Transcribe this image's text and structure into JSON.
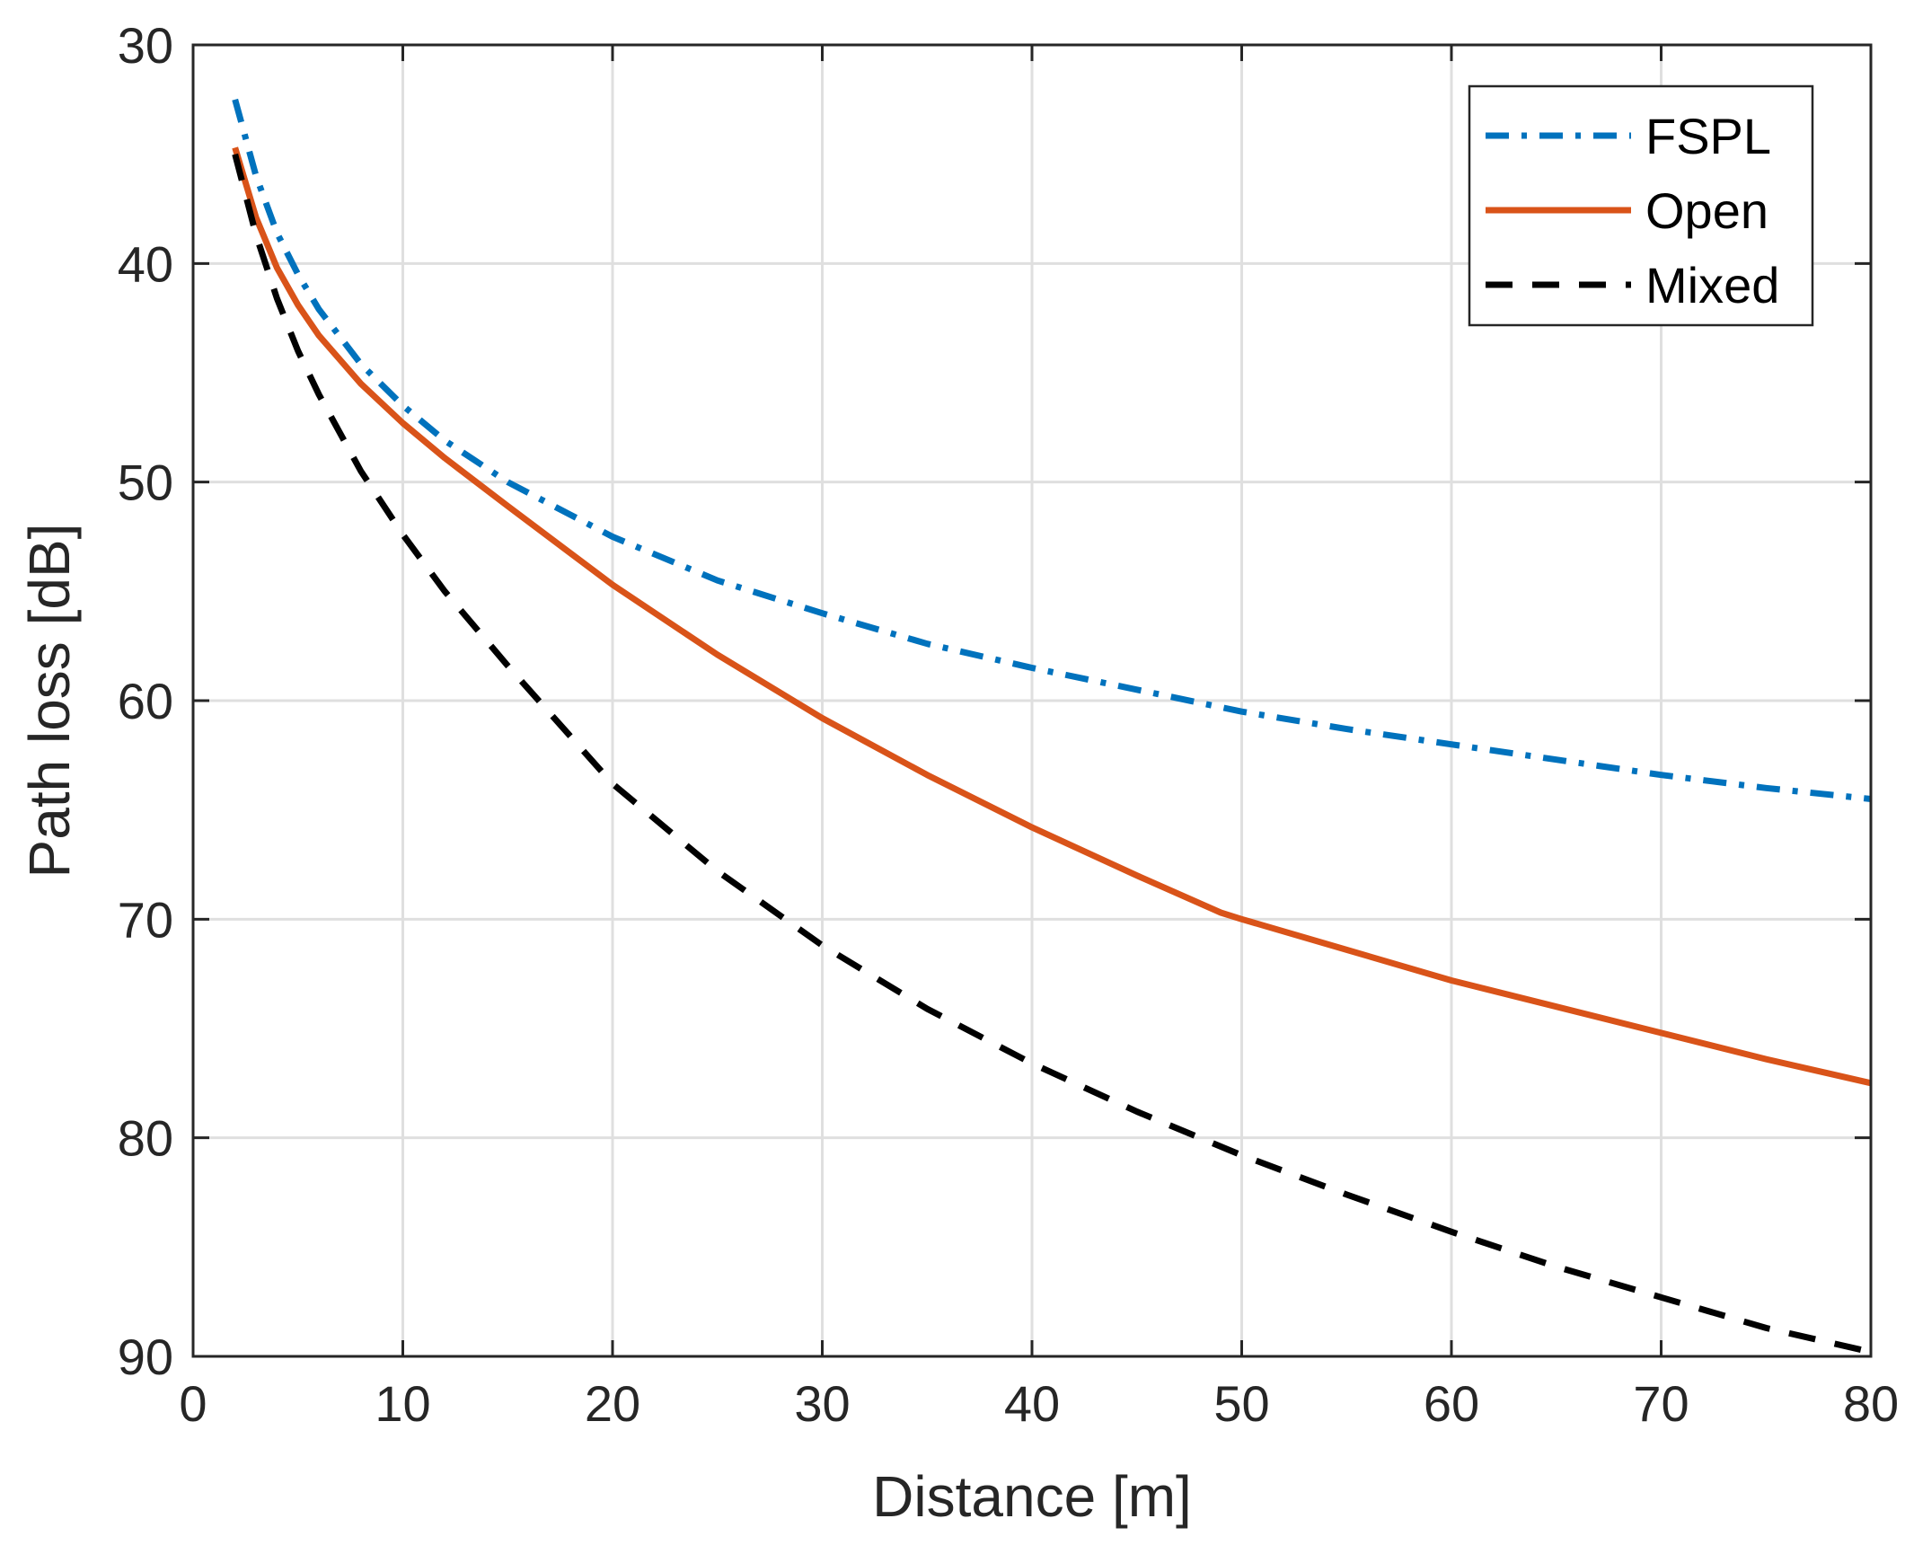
{
  "chart_data": {
    "type": "line",
    "title": "",
    "xlabel": "Distance [m]",
    "ylabel": "Path loss [dB]",
    "xlim": [
      0,
      80
    ],
    "ylim": [
      30,
      90
    ],
    "y_reversed": true,
    "xticks": [
      0,
      10,
      20,
      30,
      40,
      50,
      60,
      70,
      80
    ],
    "yticks": [
      30,
      40,
      50,
      60,
      70,
      80,
      90
    ],
    "xtick_labels": [
      "0",
      "10",
      "20",
      "30",
      "40",
      "50",
      "60",
      "70",
      "80"
    ],
    "ytick_labels": [
      "30",
      "40",
      "50",
      "60",
      "70",
      "80",
      "90"
    ],
    "grid": true,
    "legend_position": "top-right",
    "series": [
      {
        "name": "FSPL",
        "style": "dash-dot",
        "color": "#0072BD",
        "x": [
          2,
          3,
          4,
          5,
          6,
          8,
          10,
          12,
          15,
          20,
          25,
          30,
          35,
          40,
          45,
          50,
          55,
          60,
          65,
          70,
          75,
          80
        ],
        "y": [
          32.5,
          36.0,
          38.6,
          40.5,
          42.1,
          44.6,
          46.5,
          48.1,
          50.0,
          52.5,
          54.5,
          56.0,
          57.4,
          58.5,
          59.5,
          60.5,
          61.3,
          62.0,
          62.7,
          63.4,
          64.0,
          64.5
        ]
      },
      {
        "name": "Open",
        "style": "solid",
        "color": "#D95319",
        "x": [
          2,
          3,
          4,
          5,
          6,
          8,
          10,
          12,
          15,
          20,
          25,
          30,
          35,
          40,
          45,
          49,
          50,
          55,
          60,
          65,
          70,
          75,
          80
        ],
        "y": [
          34.7,
          37.9,
          40.2,
          41.9,
          43.3,
          45.5,
          47.3,
          48.9,
          51.1,
          54.7,
          57.9,
          60.8,
          63.4,
          65.8,
          68.0,
          69.7,
          70.0,
          71.4,
          72.8,
          74.0,
          75.2,
          76.4,
          77.5
        ]
      },
      {
        "name": "Mixed",
        "style": "dashed",
        "color": "#000000",
        "x": [
          2,
          3,
          4,
          5,
          6,
          8,
          10,
          12,
          15,
          20,
          25,
          30,
          35,
          40,
          45,
          50,
          55,
          60,
          65,
          70,
          75,
          80
        ],
        "y": [
          35.0,
          38.7,
          41.6,
          44.0,
          46.0,
          49.5,
          52.4,
          55.0,
          58.4,
          63.8,
          67.8,
          71.2,
          74.1,
          76.6,
          78.8,
          80.8,
          82.6,
          84.3,
          85.9,
          87.3,
          88.7,
          89.8
        ]
      }
    ]
  }
}
